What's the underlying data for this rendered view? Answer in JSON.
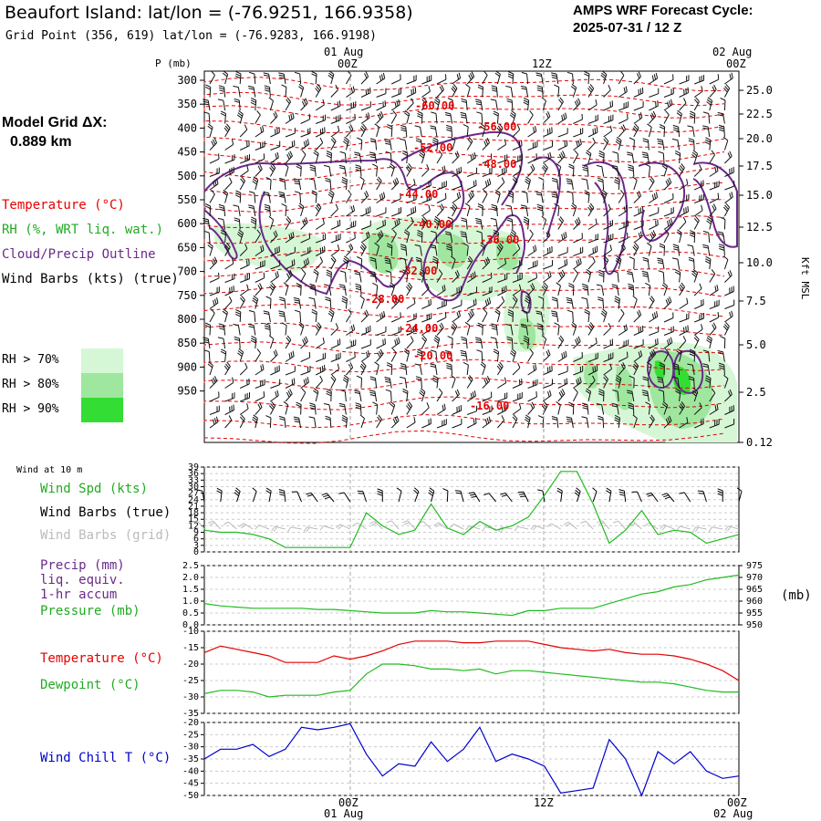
{
  "header": {
    "title": "Beaufort Island:  lat/lon = (-76.9251, 166.9358)",
    "subtitle": "Grid Point (356, 619) lat/lon = (-76.9283, 166.9198)",
    "cycle_line1": "AMPS WRF Forecast Cycle:",
    "cycle_line2": "2025-07-31 / 12  Z"
  },
  "sidebar": {
    "model_grid_label": "Model Grid ΔX:",
    "model_grid_value": "0.889 km",
    "temperature": "Temperature (°C)",
    "rh": "RH (%, WRT liq. wat.)",
    "cloud": "Cloud/Precip Outline",
    "wind_barbs": "Wind Barbs (kts) (true)",
    "rh70": "RH > 70%",
    "rh80": "RH > 80%",
    "rh90": "RH > 90%"
  },
  "colors": {
    "temperature": "#e60000",
    "rh_text": "#22aa22",
    "cloud": "#6a2a8a",
    "rh70": "#d6f7d6",
    "rh80": "#9fe69f",
    "rh90": "#33dd33",
    "wind_chill": "#0000cc",
    "precip_text": "#6a2a8a",
    "green_line": "#22bb22",
    "grid_barbs": "#bbbbbb"
  },
  "time_axis": {
    "top_dates": [
      "01 Aug",
      "02 Aug"
    ],
    "labels": [
      "00Z",
      "12Z",
      "00Z"
    ],
    "bottom_dates": [
      "01 Aug",
      "02 Aug"
    ]
  },
  "sounding": {
    "p_label": "P (mb)",
    "pressure_ticks": [
      "300",
      "350",
      "400",
      "450",
      "500",
      "550",
      "600",
      "650",
      "700",
      "750",
      "800",
      "850",
      "900",
      "950"
    ],
    "height_ticks": [
      "25.0",
      "22.5",
      "20.0",
      "17.5",
      "15.0",
      "12.5",
      "10.0",
      "7.5",
      "5.0",
      "2.5",
      "0.12"
    ],
    "height_axis_label": "Kft MSL",
    "isotherm_labels": [
      "-60.00",
      "-56.00",
      "-52.00",
      "-48.00",
      "-44.00",
      "-40.00",
      "-36.00",
      "-32.00",
      "-28.00",
      "-24.00",
      "-20.00",
      "-16.00"
    ]
  },
  "panel_wind": {
    "header": "Wind at 10 m",
    "label_speed": "Wind Spd (kts)",
    "label_barbs_true": "Wind Barbs (true)",
    "label_barbs_grid": "Wind Barbs (grid)",
    "yticks": [
      "39",
      "36",
      "33",
      "30",
      "27",
      "24",
      "21",
      "18",
      "15",
      "12",
      "9",
      "6",
      "3",
      "0"
    ]
  },
  "panel_precip": {
    "label_precip": "Precip (mm)",
    "label_liq": "liq. equiv.",
    "label_accum": "1-hr accum",
    "label_pressure": "Pressure (mb)",
    "left_ticks": [
      "2.5",
      "2.0",
      "1.5",
      "1.0",
      "0.5",
      "0.0"
    ],
    "right_ticks": [
      "975",
      "970",
      "965",
      "960",
      "955",
      "950"
    ],
    "right_unit": "(mb)"
  },
  "panel_temp": {
    "label_temp": "Temperature (°C)",
    "label_dew": "Dewpoint (°C)",
    "yticks": [
      "-10",
      "-15",
      "-20",
      "-25",
      "-30",
      "-35"
    ]
  },
  "panel_chill": {
    "label": "Wind Chill T (°C)",
    "yticks": [
      "-20",
      "-25",
      "-30",
      "-35",
      "-40",
      "-45",
      "-50"
    ]
  },
  "chart_data": [
    {
      "type": "line",
      "title": "Wind at 10 m",
      "series": [
        {
          "name": "Wind Spd (kts)",
          "values": [
            10,
            9,
            9,
            8,
            6,
            2,
            2,
            2,
            2,
            2,
            18,
            12,
            8,
            10,
            22,
            11,
            8,
            14,
            10,
            12,
            16,
            26,
            37,
            37,
            22,
            4,
            10,
            19,
            8,
            10,
            9,
            4,
            6,
            8
          ]
        }
      ],
      "ylim": [
        0,
        39
      ]
    },
    {
      "type": "line",
      "title": "Pressure (mb)",
      "series": [
        {
          "name": "Pressure (mb)",
          "values": [
            959,
            958,
            957.5,
            957,
            957,
            957,
            957,
            956.5,
            956.5,
            956,
            955.5,
            955,
            955,
            955,
            956,
            955.5,
            955.5,
            955,
            954.5,
            954,
            956,
            956,
            957,
            957,
            957,
            959,
            961,
            963,
            964,
            966,
            967,
            969,
            970,
            971
          ]
        },
        {
          "name": "Precip (mm)",
          "values": [
            0,
            0,
            0,
            0,
            0,
            0,
            0,
            0,
            0,
            0,
            0,
            0,
            0,
            0,
            0,
            0,
            0,
            0,
            0,
            0,
            0,
            0,
            0,
            0,
            0,
            0,
            0,
            0,
            0,
            0,
            0,
            0,
            0,
            0
          ]
        }
      ],
      "ylim": [
        950,
        975
      ]
    },
    {
      "type": "line",
      "title": "Temperature / Dewpoint",
      "series": [
        {
          "name": "Temperature (°C)",
          "values": [
            -16.5,
            -14.5,
            -15.5,
            -16.5,
            -17.5,
            -19.5,
            -19.5,
            -19.5,
            -17.5,
            -18.5,
            -17.5,
            -16,
            -14,
            -13,
            -13,
            -13,
            -13.5,
            -13.5,
            -13,
            -13,
            -13,
            -14,
            -15,
            -15.5,
            -16,
            -15.5,
            -16.5,
            -17,
            -17,
            -17.5,
            -18.5,
            -20,
            -22,
            -25
          ]
        },
        {
          "name": "Dewpoint (°C)",
          "values": [
            -29,
            -28,
            -28,
            -28.5,
            -30,
            -29.5,
            -29.5,
            -29.5,
            -28.5,
            -28,
            -23,
            -20,
            -20,
            -20.5,
            -21.5,
            -21.5,
            -22,
            -21.5,
            -23,
            -22,
            -22,
            -22.5,
            -23,
            -23.5,
            -24,
            -24.5,
            -25,
            -25.5,
            -25.5,
            -26,
            -27,
            -28,
            -28.5,
            -28.5
          ]
        }
      ],
      "ylim": [
        -35,
        -10
      ]
    },
    {
      "type": "line",
      "title": "Wind Chill T (°C)",
      "series": [
        {
          "name": "Wind Chill T (°C)",
          "values": [
            -35,
            -31,
            -31,
            -29,
            -34,
            -31,
            -22,
            -23,
            -22,
            -20.5,
            -33,
            -42,
            -37,
            -38,
            -28,
            -36,
            -31,
            -22,
            -36,
            -33,
            -35,
            -38,
            -49,
            -48,
            -47,
            -27,
            -35,
            -50,
            -32,
            -37,
            -32,
            -40,
            -43,
            -42
          ]
        }
      ],
      "ylim": [
        -50,
        -20
      ]
    }
  ]
}
